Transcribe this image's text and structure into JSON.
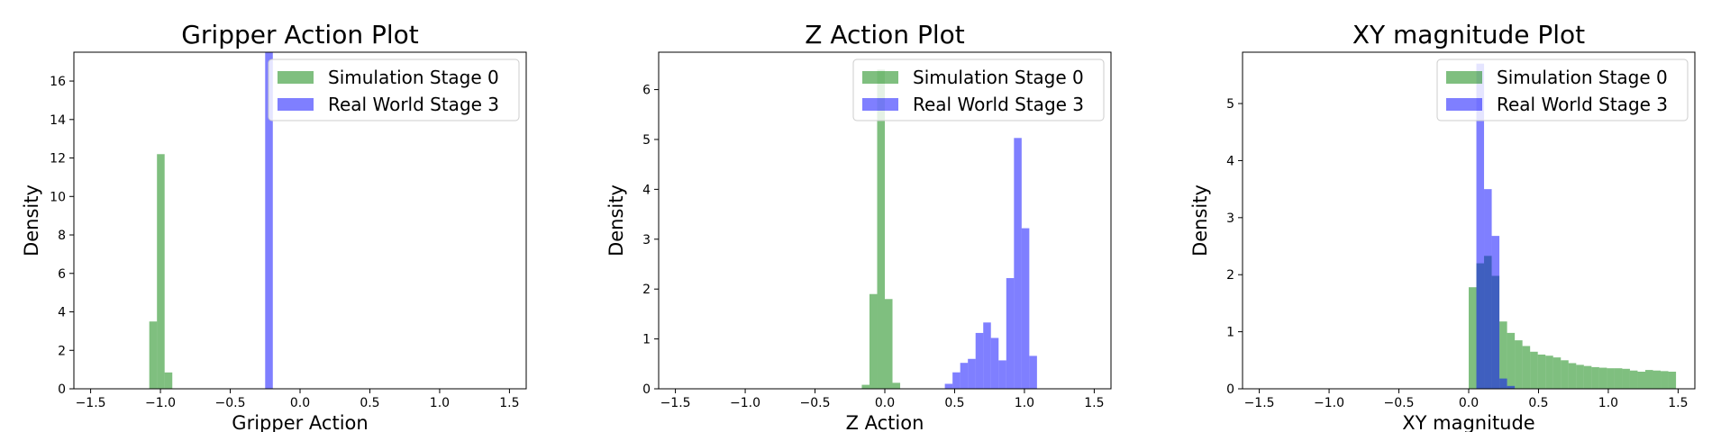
{
  "chart_data": [
    {
      "type": "bar",
      "title": "Gripper Action Plot",
      "xlabel": "Gripper Action",
      "ylabel": "Density",
      "xlim": [
        -1.62,
        1.62
      ],
      "ylim": [
        0,
        17.5
      ],
      "xticks": [
        -1.5,
        -1.0,
        -0.5,
        0.0,
        0.5,
        1.0,
        1.5
      ],
      "xtick_labels": [
        "−1.5",
        "−1.0",
        "−0.5",
        "0.0",
        "0.5",
        "1.0",
        "1.5"
      ],
      "yticks": [
        0,
        2,
        4,
        6,
        8,
        10,
        12,
        14,
        16
      ],
      "ytick_labels": [
        "0",
        "2",
        "4",
        "6",
        "8",
        "10",
        "12",
        "14",
        "16"
      ],
      "legend": "top-right",
      "series": [
        {
          "name": "Simulation Stage 0",
          "color": "#008000",
          "opacity": 0.5,
          "bin_width": 0.055,
          "bin_starts": [
            -1.08,
            -1.025,
            -0.97
          ],
          "values": [
            3.5,
            12.2,
            0.85
          ]
        },
        {
          "name": "Real World Stage 3",
          "color": "#0000ff",
          "opacity": 0.5,
          "bin_width": 0.055,
          "bin_starts": [
            -0.25
          ],
          "values": [
            17.5
          ]
        }
      ]
    },
    {
      "type": "bar",
      "title": "Z Action Plot",
      "xlabel": "Z Action",
      "ylabel": "Density",
      "xlim": [
        -1.62,
        1.62
      ],
      "ylim": [
        0,
        6.75
      ],
      "xticks": [
        -1.5,
        -1.0,
        -0.5,
        0.0,
        0.5,
        1.0,
        1.5
      ],
      "xtick_labels": [
        "−1.5",
        "−1.0",
        "−0.5",
        "0.0",
        "0.5",
        "1.0",
        "1.5"
      ],
      "yticks": [
        0,
        1,
        2,
        3,
        4,
        5,
        6
      ],
      "ytick_labels": [
        "0",
        "1",
        "2",
        "3",
        "4",
        "5",
        "6"
      ],
      "legend": "top-right",
      "series": [
        {
          "name": "Simulation Stage 0",
          "color": "#008000",
          "opacity": 0.5,
          "bin_width": 0.055,
          "bin_starts": [
            -0.165,
            -0.11,
            -0.055,
            0.0,
            0.055
          ],
          "values": [
            0.08,
            1.9,
            6.4,
            1.8,
            0.12
          ]
        },
        {
          "name": "Real World Stage 3",
          "color": "#0000ff",
          "opacity": 0.5,
          "bin_width": 0.055,
          "bin_starts": [
            0.43,
            0.485,
            0.54,
            0.595,
            0.65,
            0.705,
            0.76,
            0.815,
            0.87,
            0.925,
            0.98,
            1.035,
            1.09
          ],
          "values": [
            0.1,
            0.33,
            0.52,
            0.6,
            1.12,
            1.33,
            1.02,
            0.57,
            2.22,
            5.03,
            3.22,
            0.66,
            0.0
          ]
        }
      ]
    },
    {
      "type": "bar",
      "title": "XY magnitude Plot",
      "xlabel": "XY magnitude",
      "ylabel": "Density",
      "xlim": [
        -1.62,
        1.62
      ],
      "ylim": [
        0,
        5.9
      ],
      "xticks": [
        -1.5,
        -1.0,
        -0.5,
        0.0,
        0.5,
        1.0,
        1.5
      ],
      "xtick_labels": [
        "−1.5",
        "−1.0",
        "−0.5",
        "0.0",
        "0.5",
        "1.0",
        "1.5"
      ],
      "yticks": [
        0,
        1,
        2,
        3,
        4,
        5
      ],
      "ytick_labels": [
        "0",
        "1",
        "2",
        "3",
        "4",
        "5"
      ],
      "legend": "top-right",
      "series": [
        {
          "name": "Simulation Stage 0",
          "color": "#008000",
          "opacity": 0.5,
          "bin_width": 0.055,
          "bin_starts": [
            0.0,
            0.055,
            0.11,
            0.165,
            0.22,
            0.275,
            0.33,
            0.385,
            0.44,
            0.495,
            0.55,
            0.605,
            0.66,
            0.715,
            0.77,
            0.825,
            0.88,
            0.935,
            0.99,
            1.045,
            1.1,
            1.155,
            1.21,
            1.265,
            1.32,
            1.375,
            1.43,
            1.485
          ],
          "values": [
            1.78,
            2.2,
            2.33,
            1.98,
            1.18,
            0.98,
            0.85,
            0.75,
            0.65,
            0.6,
            0.58,
            0.55,
            0.5,
            0.45,
            0.42,
            0.4,
            0.38,
            0.37,
            0.36,
            0.36,
            0.35,
            0.32,
            0.3,
            0.33,
            0.32,
            0.31,
            0.3,
            0.0
          ]
        },
        {
          "name": "Real World Stage 3",
          "color": "#0000ff",
          "opacity": 0.5,
          "bin_width": 0.055,
          "bin_starts": [
            0.0,
            0.055,
            0.11,
            0.165,
            0.22,
            0.275
          ],
          "values": [
            0.0,
            5.7,
            3.5,
            2.68,
            0.18,
            0.05
          ]
        }
      ]
    }
  ]
}
